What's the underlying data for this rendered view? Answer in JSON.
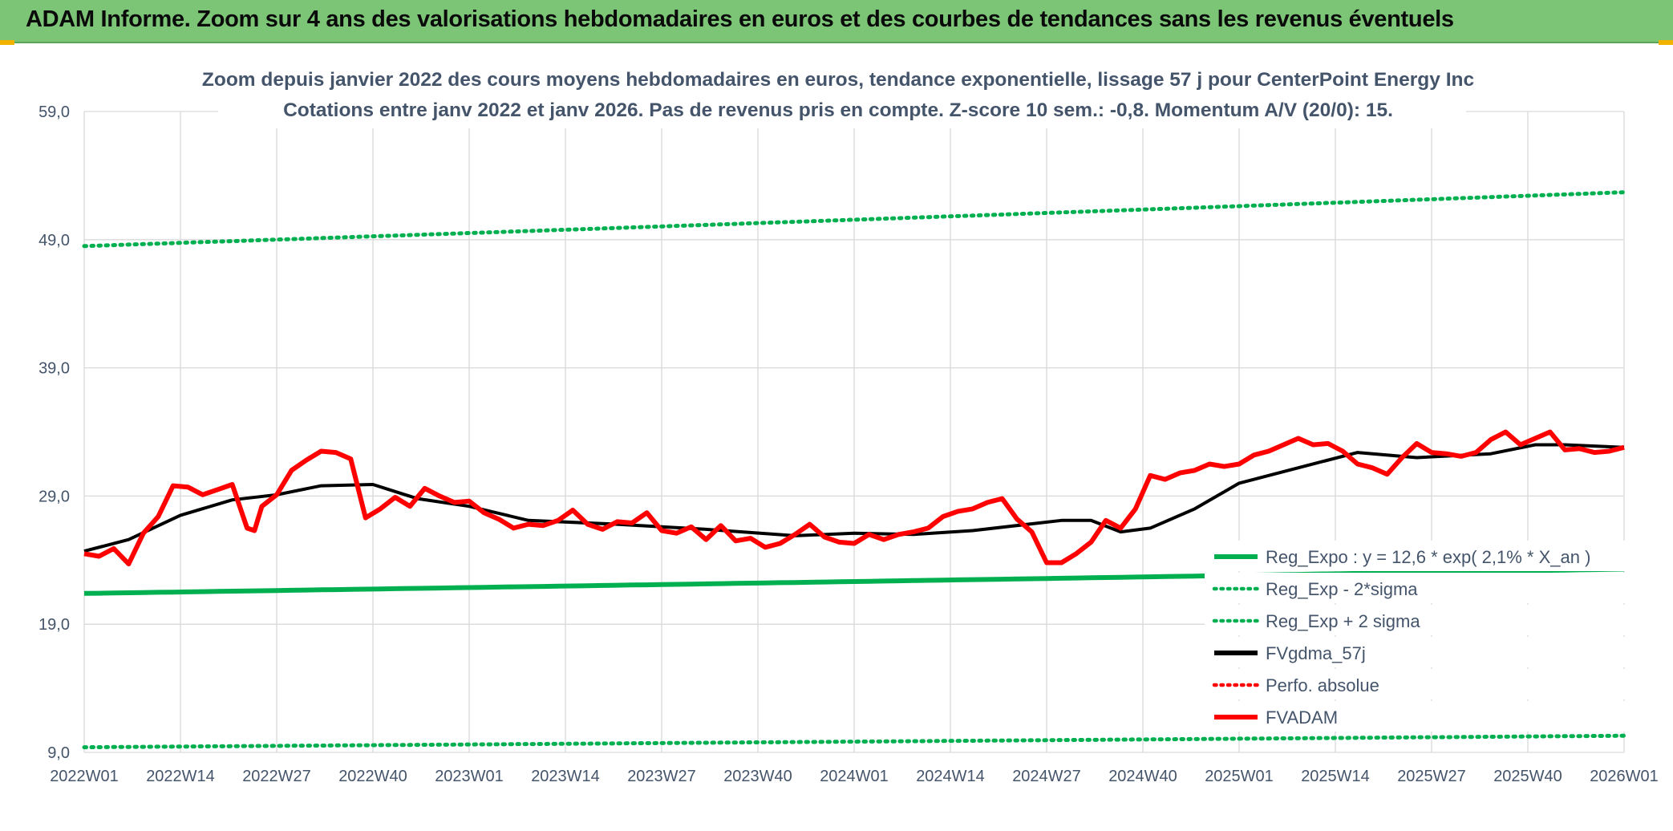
{
  "header": {
    "title": "ADAM Informe. Zoom sur 4 ans des valorisations hebdomadaires en euros et des courbes de tendances sans les revenus éventuels"
  },
  "colors": {
    "header_bg": "#7cc576",
    "reg_expo": "#00b050",
    "fvgdma": "#000000",
    "fvadam": "#ff0000",
    "grid": "#d9d9d9",
    "text": "#44546a"
  },
  "chart_data": {
    "type": "line",
    "title_line1": "Zoom depuis janvier 2022 des cours moyens hebdomadaires en euros, tendance exponentielle, lissage 57 j pour CenterPoint Energy Inc",
    "title_line2": "Cotations entre janv 2022 et janv 2026. Pas de revenus pris en compte. Z-score 10 sem.: -0,8. Momentum A/V (20/0): 15.",
    "ylim": [
      9,
      59
    ],
    "yticks": [
      "9,0",
      "19,0",
      "29,0",
      "39,0",
      "49,0",
      "59,0"
    ],
    "ytick_values": [
      9,
      19,
      29,
      39,
      49,
      59
    ],
    "xticks": [
      "2022W01",
      "2022W14",
      "2022W27",
      "2022W40",
      "2023W01",
      "2023W14",
      "2023W27",
      "2023W40",
      "2024W01",
      "2024W14",
      "2024W27",
      "2024W40",
      "2025W01",
      "2025W14",
      "2025W27",
      "2025W40",
      "2026W01"
    ],
    "x_weeks_total": 208,
    "legend": [
      {
        "key": "reg_expo",
        "label": "Reg_Expo : y = 12,6 * exp( 2,1% *  X_an )",
        "style": "solid-green"
      },
      {
        "key": "reg_minus",
        "label": "Reg_Exp - 2*sigma",
        "style": "dotted-green"
      },
      {
        "key": "reg_plus",
        "label": "Reg_Exp + 2 sigma",
        "style": "dotted-green"
      },
      {
        "key": "fvgdma",
        "label": "FVgdma_57j",
        "style": "solid-black"
      },
      {
        "key": "perfo",
        "label": "Perfo. absolue",
        "style": "dotted-red"
      },
      {
        "key": "fvadam",
        "label": "FVADAM",
        "style": "solid-red"
      }
    ],
    "series": [
      {
        "name": "Reg_Expo",
        "start": 21.4,
        "end": 23.3
      },
      {
        "name": "Reg_Exp - 2*sigma",
        "start": 9.4,
        "end": 10.3
      },
      {
        "name": "Reg_Exp + 2 sigma",
        "start": 48.5,
        "end": 52.7
      },
      {
        "name": "FVgdma_57j",
        "x": [
          0,
          6,
          13,
          20,
          26,
          32,
          39,
          45,
          52,
          60,
          72,
          84,
          96,
          104,
          112,
          120,
          132,
          136,
          140,
          144,
          150,
          156,
          164,
          172,
          180,
          190,
          196,
          200,
          208
        ],
        "y": [
          24.7,
          25.6,
          27.5,
          28.7,
          29.1,
          29.8,
          29.9,
          28.8,
          28.2,
          27.1,
          26.8,
          26.4,
          25.9,
          26.1,
          26.0,
          26.3,
          27.1,
          27.1,
          26.2,
          26.5,
          28.0,
          30.0,
          31.2,
          32.4,
          32.0,
          32.3,
          33.0,
          33.0,
          32.8
        ]
      },
      {
        "name": "FVADAM",
        "x": [
          0,
          2,
          4,
          6,
          8,
          10,
          12,
          14,
          16,
          18,
          20,
          22,
          23,
          24,
          26,
          28,
          30,
          32,
          34,
          36,
          38,
          40,
          42,
          44,
          46,
          48,
          50,
          52,
          54,
          56,
          58,
          60,
          62,
          64,
          66,
          68,
          70,
          72,
          74,
          76,
          78,
          80,
          82,
          84,
          86,
          88,
          90,
          92,
          94,
          96,
          98,
          100,
          102,
          104,
          106,
          108,
          110,
          112,
          114,
          116,
          118,
          120,
          122,
          124,
          126,
          128,
          130,
          132,
          134,
          136,
          138,
          140,
          142,
          144,
          146,
          148,
          150,
          152,
          154,
          156,
          158,
          160,
          162,
          164,
          166,
          168,
          170,
          172,
          174,
          176,
          178,
          180,
          182,
          184,
          186,
          188,
          190,
          192,
          194,
          196,
          198,
          200,
          202,
          204,
          206,
          208
        ],
        "y": [
          24.5,
          24.3,
          24.9,
          23.7,
          26.1,
          27.4,
          29.8,
          29.7,
          29.1,
          29.5,
          29.9,
          26.5,
          26.3,
          28.2,
          29.1,
          31.0,
          31.8,
          32.5,
          32.4,
          31.9,
          27.3,
          28.0,
          28.9,
          28.2,
          29.6,
          29.0,
          28.5,
          28.6,
          27.7,
          27.2,
          26.5,
          26.8,
          26.7,
          27.1,
          27.9,
          26.8,
          26.4,
          27.0,
          26.9,
          27.7,
          26.3,
          26.1,
          26.6,
          25.6,
          26.7,
          25.5,
          25.7,
          25.0,
          25.3,
          26.0,
          26.8,
          25.8,
          25.4,
          25.3,
          26.0,
          25.6,
          26.0,
          26.2,
          26.5,
          27.4,
          27.8,
          28.0,
          28.5,
          28.8,
          27.2,
          26.2,
          23.8,
          23.8,
          24.5,
          25.4,
          27.1,
          26.5,
          28.0,
          30.6,
          30.3,
          30.8,
          31.0,
          31.5,
          31.3,
          31.5,
          32.2,
          32.5,
          33.0,
          33.5,
          33.0,
          33.1,
          32.5,
          31.5,
          31.2,
          30.7,
          32.0,
          33.1,
          32.4,
          32.3,
          32.1,
          32.4,
          33.4,
          34.0,
          33.0,
          33.5,
          34.0,
          32.6,
          32.7,
          32.4,
          32.5,
          32.8
        ]
      }
    ]
  }
}
